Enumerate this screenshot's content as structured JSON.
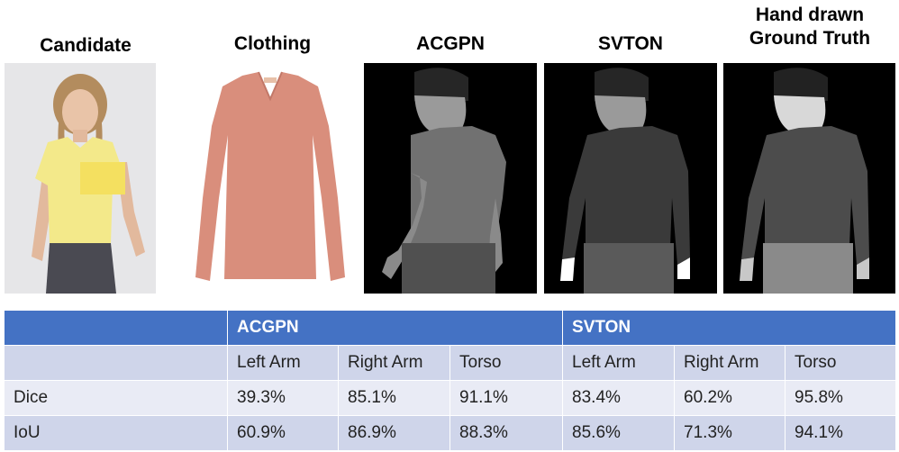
{
  "labels": {
    "candidate": "Candidate",
    "clothing": "Clothing",
    "acgpn": "ACGPN",
    "svton": "SVTON",
    "ground_truth_line1": "Hand drawn",
    "ground_truth_line2": "Ground Truth"
  },
  "table": {
    "group_headers": [
      "ACGPN",
      "SVTON"
    ],
    "columns": [
      "Left Arm",
      "Right Arm",
      "Torso",
      "Left Arm",
      "Right Arm",
      "Torso"
    ],
    "rows": [
      {
        "metric": "Dice",
        "values": [
          "39.3%",
          "85.1%",
          "91.1%",
          "83.4%",
          "60.2%",
          "95.8%"
        ]
      },
      {
        "metric": "IoU",
        "values": [
          "60.9%",
          "86.9%",
          "88.3%",
          "85.6%",
          "71.3%",
          "94.1%"
        ]
      }
    ]
  },
  "colors": {
    "header_blue": "#4472c4",
    "row_light": "#e9ebf5",
    "row_mid": "#cfd5ea",
    "shirt_yellow": "#f3e98a",
    "garment_salmon": "#d98e7c"
  }
}
